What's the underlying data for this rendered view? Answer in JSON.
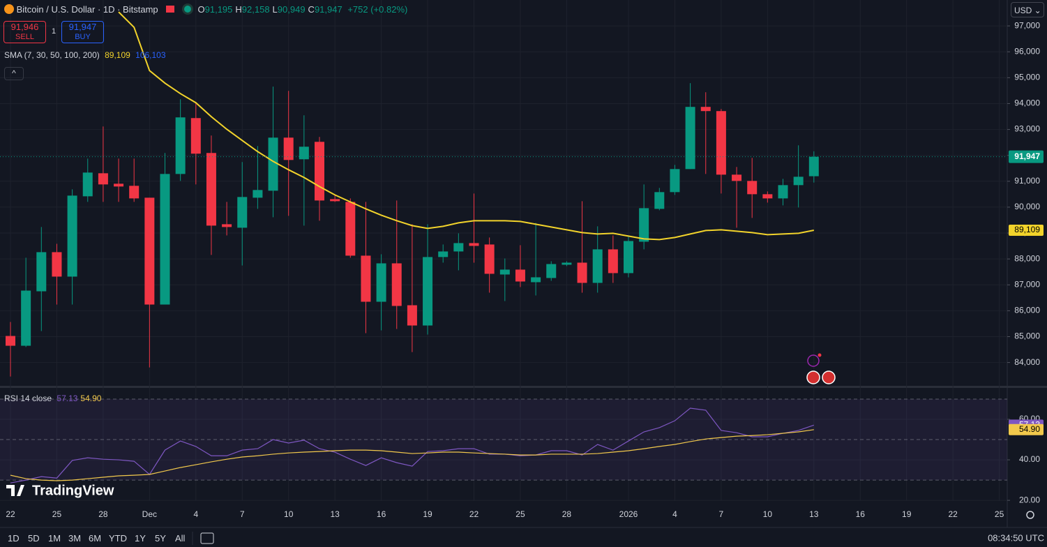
{
  "header": {
    "symbol": "Bitcoin / U.S. Dollar · 1D · Bitstamp",
    "ohlc": [
      {
        "key": "O",
        "value": "91,195"
      },
      {
        "key": "H",
        "value": "92,158"
      },
      {
        "key": "L",
        "value": "90,949"
      },
      {
        "key": "C",
        "value": "91,947"
      }
    ],
    "change": "+752 (+0.82%)"
  },
  "trade": {
    "sell_price": "91,946",
    "sell": "SELL",
    "qty": "1",
    "buy_price": "91,947",
    "buy": "BUY"
  },
  "currency": "USD",
  "logo": "TradingView",
  "ranges": [
    "1D",
    "5D",
    "1M",
    "3M",
    "6M",
    "YTD",
    "1Y",
    "5Y",
    "All"
  ],
  "clock": "08:34:50 UTC",
  "chart_data": [
    {
      "type": "candlestick",
      "up_color": "#089981",
      "down_color": "#f23645",
      "grid": true,
      "categories": [
        "22",
        null,
        null,
        "25",
        null,
        null,
        "28",
        null,
        null,
        "Dec",
        null,
        null,
        "4",
        null,
        null,
        "7",
        null,
        null,
        "10",
        null,
        null,
        "13",
        null,
        null,
        "16",
        null,
        null,
        "19",
        null,
        null,
        "22",
        null,
        null,
        "25",
        null,
        null,
        "28",
        null,
        null,
        null,
        "2026",
        null,
        null,
        "4",
        null,
        null,
        "7",
        null,
        null,
        "10",
        null,
        null,
        "13",
        null,
        null,
        "16",
        null,
        null,
        "19",
        null,
        null,
        "22",
        null,
        null,
        "25"
      ],
      "open": [
        85026,
        84648,
        86751,
        88262,
        87318,
        90419,
        91309,
        90905,
        90824,
        90365,
        86239,
        91282,
        93440,
        92092,
        89341,
        89206,
        90365,
        90635,
        92685,
        91849,
        92523,
        90311,
        90203,
        88127,
        86347,
        87830,
        86212,
        85430,
        88073,
        88289,
        88612,
        88558,
        87399,
        87588,
        87102,
        87264,
        87776,
        87857,
        87075,
        88370,
        87453,
        88666,
        89934,
        90581,
        91471,
        93872,
        93710,
        91255,
        91013,
        90500,
        90338,
        90851,
        91195,
        null,
        null,
        null,
        null,
        null,
        null,
        null,
        null,
        null,
        null,
        null,
        null
      ],
      "high": [
        85565,
        88046,
        89233,
        88585,
        90689,
        91876,
        93116,
        91876,
        91876,
        90365,
        92092,
        94168,
        94033,
        92766,
        90203,
        91741,
        92361,
        94654,
        94492,
        93548,
        92712,
        90446,
        90338,
        90203,
        88181,
        90257,
        89341,
        89341,
        88559,
        88990,
        90527,
        88828,
        88019,
        88531,
        89394,
        87911,
        87911,
        90230,
        89260,
        88909,
        88855,
        90878,
        90743,
        91632,
        94789,
        94438,
        93791,
        91552,
        91903,
        90608,
        91093,
        92388,
        92158,
        null,
        null,
        null,
        null,
        null,
        null,
        null,
        null,
        null,
        null,
        null,
        null
      ],
      "low": [
        83461,
        84600,
        85214,
        86239,
        86239,
        90204,
        90204,
        90204,
        90204,
        83812,
        86239,
        91013,
        90878,
        88154,
        88908,
        87749,
        89934,
        89611,
        89665,
        89287,
        89476,
        90203,
        88046,
        85133,
        85241,
        85295,
        84405,
        85079,
        87857,
        87561,
        87857,
        86698,
        86374,
        86914,
        86590,
        87156,
        87723,
        86698,
        86698,
        87075,
        87291,
        88370,
        89880,
        90473,
        91471,
        91282,
        90527,
        89206,
        89584,
        90176,
        90069,
        89988,
        90949,
        null,
        null,
        null,
        null,
        null,
        null,
        null,
        null,
        null,
        null,
        null,
        null
      ],
      "close": [
        84648,
        86778,
        88262,
        87318,
        90446,
        91336,
        90878,
        90797,
        90338,
        86239,
        91282,
        93467,
        92065,
        89287,
        89233,
        90392,
        90662,
        92685,
        91822,
        92334,
        90257,
        90230,
        88127,
        86347,
        87830,
        86185,
        85430,
        88073,
        88289,
        88612,
        88504,
        87426,
        87588,
        87129,
        87291,
        87803,
        87857,
        87075,
        88370,
        87453,
        88693,
        89961,
        90581,
        91471,
        93872,
        93710,
        91255,
        91013,
        90500,
        90338,
        90851,
        91174,
        91947,
        null,
        null,
        null,
        null,
        null,
        null,
        null,
        null,
        null,
        null,
        null,
        null
      ],
      "series": [
        {
          "name": "SMA (7, 30, 50, 100, 200)",
          "color": "#f2d32b",
          "value_label": "89,109",
          "values": [
            null,
            null,
            null,
            null,
            null,
            null,
            null,
            97539,
            96946,
            95274,
            94789,
            94384,
            94033,
            93494,
            93009,
            92577,
            92146,
            91768,
            91444,
            91147,
            90797,
            90473,
            90203,
            89934,
            89691,
            89476,
            89287,
            89179,
            89260,
            89394,
            89476,
            89476,
            89476,
            89449,
            89341,
            89233,
            89125,
            89017,
            88963,
            88990,
            88882,
            88774,
            88747,
            88828,
            88963,
            89098,
            89125,
            89071,
            89017,
            88936,
            88963,
            88990,
            89109,
            null,
            null,
            null,
            null,
            null,
            null,
            null,
            null,
            null,
            null,
            null,
            null
          ]
        }
      ],
      "extra_values": [
        {
          "label": "106,103",
          "color": "#2962ff"
        }
      ],
      "last_price": {
        "value": 91947,
        "label": "91,947"
      },
      "ylim": [
        83100,
        98000
      ],
      "yticks": [
        {
          "value": 84000,
          "label": "84,000"
        },
        {
          "value": 85000,
          "label": "85,000"
        },
        {
          "value": 86000,
          "label": "86,000"
        },
        {
          "value": 87000,
          "label": "87,000"
        },
        {
          "value": 88000,
          "label": "88,000"
        },
        {
          "value": 89000,
          "label": "89,000"
        },
        {
          "value": 90000,
          "label": "90,000"
        },
        {
          "value": 91000,
          "label": "91,000"
        },
        {
          "value": 92000,
          "label": "92,000"
        },
        {
          "value": 93000,
          "label": "93,000"
        },
        {
          "value": 94000,
          "label": "94,000"
        },
        {
          "value": 95000,
          "label": "95,000"
        },
        {
          "value": 96000,
          "label": "96,000"
        },
        {
          "value": 97000,
          "label": "97,000"
        }
      ]
    },
    {
      "type": "line",
      "title": "RSI 14 close",
      "ylim": [
        19.7,
        75.5
      ],
      "yticks": [
        {
          "value": 20,
          "label": "20.00"
        },
        {
          "value": 40,
          "label": "40.00"
        },
        {
          "value": 60,
          "label": "60.00"
        }
      ],
      "bands": [
        70,
        50,
        30
      ],
      "band_color": "#7e57c2",
      "series": [
        {
          "color": "#7e57c2",
          "value_label": "57.13",
          "values": [
            28.6,
            30,
            31.7,
            31,
            39.7,
            41,
            40.3,
            40,
            39.3,
            32.8,
            44.8,
            49.3,
            46.6,
            42,
            42,
            44.8,
            45.5,
            50,
            48.3,
            49.7,
            45.5,
            43.8,
            40.3,
            37.2,
            41,
            38.6,
            36.9,
            44.1,
            44.5,
            45.5,
            45.5,
            42.8,
            42.8,
            42,
            42.4,
            44.5,
            44.5,
            42.4,
            47.6,
            44.8,
            49.3,
            53.8,
            55.9,
            59.3,
            65.5,
            64.5,
            54.5,
            53.4,
            51.4,
            51.4,
            53.1,
            54.5,
            57.13,
            null,
            null,
            null,
            null,
            null,
            null,
            null,
            null,
            null,
            null,
            null,
            null
          ]
        },
        {
          "color": "#f2c94c",
          "value_label": "54.90",
          "values": [
            32.4,
            30.7,
            30,
            29.7,
            30,
            30.7,
            31.4,
            32.1,
            32.4,
            32.8,
            34.5,
            36.2,
            37.6,
            39,
            40.3,
            41.4,
            42,
            42.8,
            43.4,
            43.8,
            44.1,
            44.5,
            44.8,
            44.8,
            44.5,
            43.8,
            43.1,
            43.4,
            43.8,
            43.8,
            43.4,
            43.1,
            42.8,
            42.4,
            42.4,
            42.8,
            42.8,
            42.8,
            43.1,
            43.8,
            44.5,
            45.5,
            46.6,
            47.6,
            49,
            50.3,
            51,
            51.7,
            52,
            52.4,
            53.1,
            53.8,
            54.9,
            null,
            null,
            null,
            null,
            null,
            null,
            null,
            null,
            null,
            null,
            null,
            null
          ]
        }
      ]
    }
  ]
}
